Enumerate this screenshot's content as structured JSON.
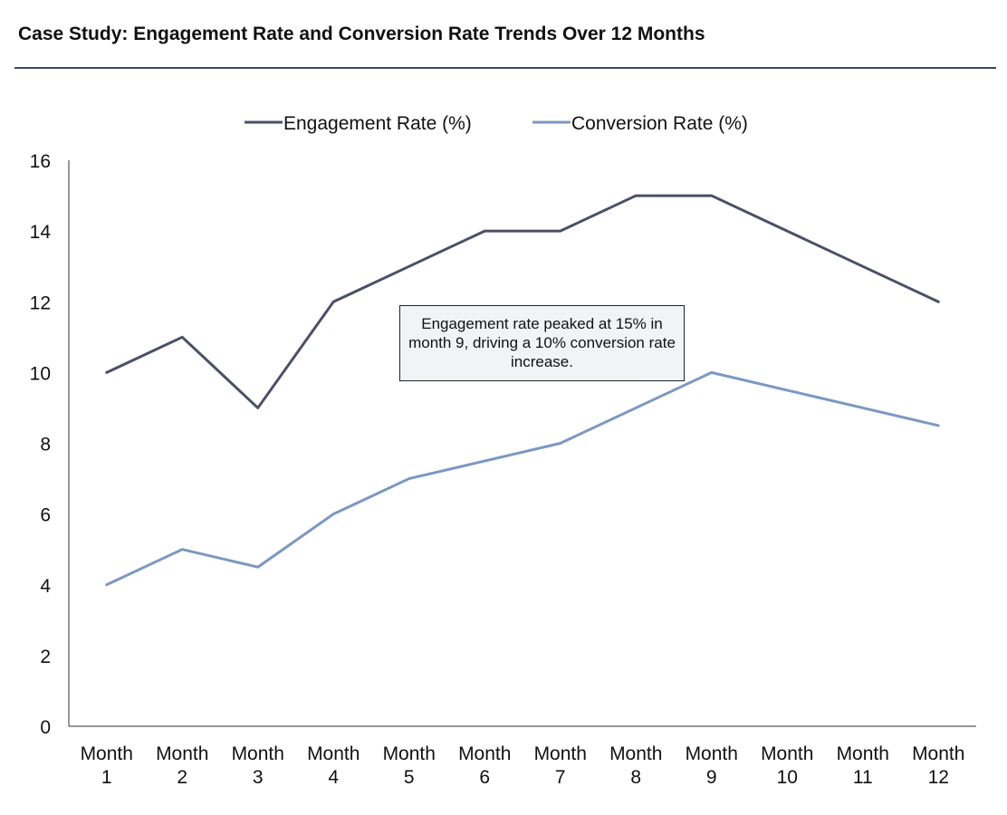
{
  "colors": {
    "engagement": "#4a5068",
    "conversion": "#7b98c2",
    "axis": "#333333"
  },
  "chart_data": {
    "type": "line",
    "title": "Case Study: Engagement Rate and Conversion Rate Trends Over 12 Months",
    "categories": [
      "Month 1",
      "Month 2",
      "Month 3",
      "Month 4",
      "Month 5",
      "Month 6",
      "Month 7",
      "Month 8",
      "Month 9",
      "Month 10",
      "Month 11",
      "Month 12"
    ],
    "series": [
      {
        "name": "Engagement Rate (%)",
        "values": [
          10,
          11,
          9,
          12,
          13,
          14,
          14,
          15,
          15,
          14,
          13,
          12
        ]
      },
      {
        "name": "Conversion Rate (%)",
        "values": [
          4,
          5,
          4.5,
          6,
          7,
          7.5,
          8,
          9,
          10,
          9.5,
          9,
          8.5
        ]
      }
    ],
    "ylim": [
      0,
      16
    ],
    "yticks": [
      0,
      2,
      4,
      6,
      8,
      10,
      12,
      14,
      16
    ],
    "legend_position": "top",
    "grid": false,
    "annotation": "Engagement rate peaked at 15% in month 9, driving a 10% conversion rate increase."
  }
}
